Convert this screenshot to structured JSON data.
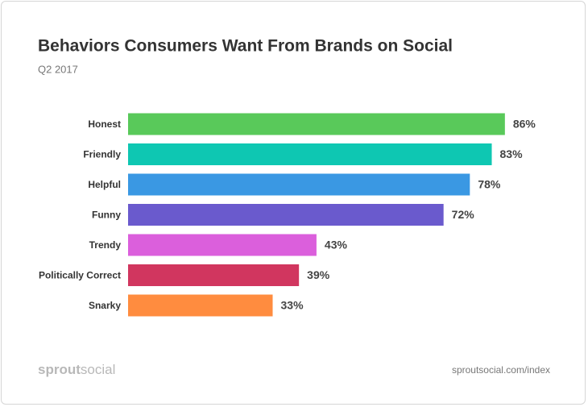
{
  "chart_data": {
    "type": "barh",
    "title": "Behaviors Consumers Want From Brands on Social",
    "subtitle": "Q2 2017",
    "categories": [
      "Honest",
      "Friendly",
      "Helpful",
      "Funny",
      "Trendy",
      "Politically Correct",
      "Snarky"
    ],
    "values": [
      86,
      83,
      78,
      72,
      43,
      39,
      33
    ],
    "value_labels": [
      "86%",
      "83%",
      "78%",
      "72%",
      "43%",
      "39%",
      "33%"
    ],
    "colors": [
      "#59c95a",
      "#0ec7b2",
      "#3a98e3",
      "#6a5acd",
      "#db5fdc",
      "#d1365f",
      "#ff8c3f"
    ],
    "xlim": [
      0,
      100
    ]
  },
  "footer": {
    "logo": [
      "sprout",
      "social"
    ],
    "url": "sproutsocial.com/index"
  }
}
